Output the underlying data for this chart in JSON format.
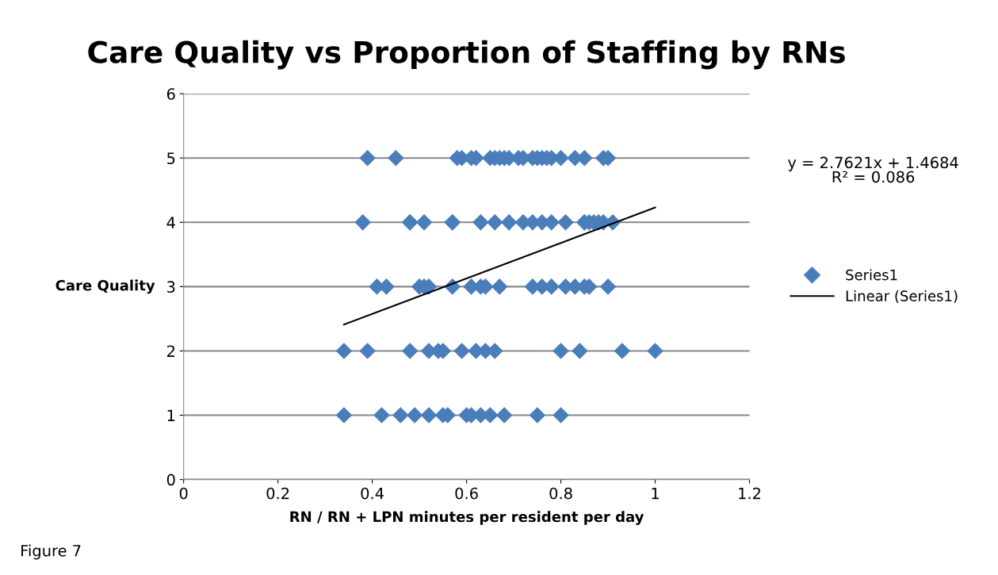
{
  "chart_data": {
    "type": "scatter",
    "title": "Care Quality vs Proportion of Staffing by RNs",
    "xlabel": "RN / RN + LPN minutes per resident per day",
    "ylabel": "Care Quality",
    "xlim": [
      0,
      1.2
    ],
    "xticks": [
      0,
      0.2,
      0.4,
      0.6,
      0.8,
      1,
      1.2
    ],
    "ylim": [
      0,
      6
    ],
    "yticks": [
      0,
      1,
      2,
      3,
      4,
      5,
      6
    ],
    "grid": "y",
    "legend": "right",
    "series": [
      {
        "name": "Series1",
        "color": "#4a7ebb",
        "marker": "diamond",
        "x": [
          0.39,
          0.45,
          0.58,
          0.59,
          0.61,
          0.62,
          0.65,
          0.66,
          0.67,
          0.68,
          0.69,
          0.71,
          0.72,
          0.74,
          0.75,
          0.76,
          0.77,
          0.78,
          0.8,
          0.83,
          0.85,
          0.89,
          0.9,
          0.38,
          0.48,
          0.48,
          0.51,
          0.57,
          0.57,
          0.63,
          0.66,
          0.69,
          0.72,
          0.74,
          0.76,
          0.78,
          0.81,
          0.85,
          0.85,
          0.86,
          0.87,
          0.88,
          0.89,
          0.91,
          0.41,
          0.43,
          0.5,
          0.51,
          0.52,
          0.57,
          0.61,
          0.63,
          0.64,
          0.67,
          0.74,
          0.76,
          0.78,
          0.81,
          0.83,
          0.85,
          0.86,
          0.9,
          0.34,
          0.39,
          0.48,
          0.52,
          0.54,
          0.55,
          0.59,
          0.62,
          0.64,
          0.66,
          0.8,
          0.84,
          0.93,
          1.0,
          0.34,
          0.42,
          0.46,
          0.49,
          0.52,
          0.55,
          0.56,
          0.6,
          0.61,
          0.63,
          0.65,
          0.68,
          0.75,
          0.8
        ],
        "values": [
          5,
          5,
          5,
          5,
          5,
          5,
          5,
          5,
          5,
          5,
          5,
          5,
          5,
          5,
          5,
          5,
          5,
          5,
          5,
          5,
          5,
          5,
          5,
          4,
          4,
          4,
          4,
          4,
          4,
          4,
          4,
          4,
          4,
          4,
          4,
          4,
          4,
          4,
          4,
          4,
          4,
          4,
          4,
          4,
          3,
          3,
          3,
          3,
          3,
          3,
          3,
          3,
          3,
          3,
          3,
          3,
          3,
          3,
          3,
          3,
          3,
          3,
          2,
          2,
          2,
          2,
          2,
          2,
          2,
          2,
          2,
          2,
          2,
          2,
          2,
          2,
          1,
          1,
          1,
          1,
          1,
          1,
          1,
          1,
          1,
          1,
          1,
          1,
          1,
          1
        ]
      },
      {
        "name": "Linear (Series1)",
        "type": "line",
        "color": "#000000",
        "x": [
          0.34,
          1.0
        ],
        "values": [
          2.41,
          4.23
        ]
      }
    ],
    "annotations": [
      "y = 2.7621x + 1.4684",
      "R² = 0.086",
      "Figure 7"
    ]
  }
}
